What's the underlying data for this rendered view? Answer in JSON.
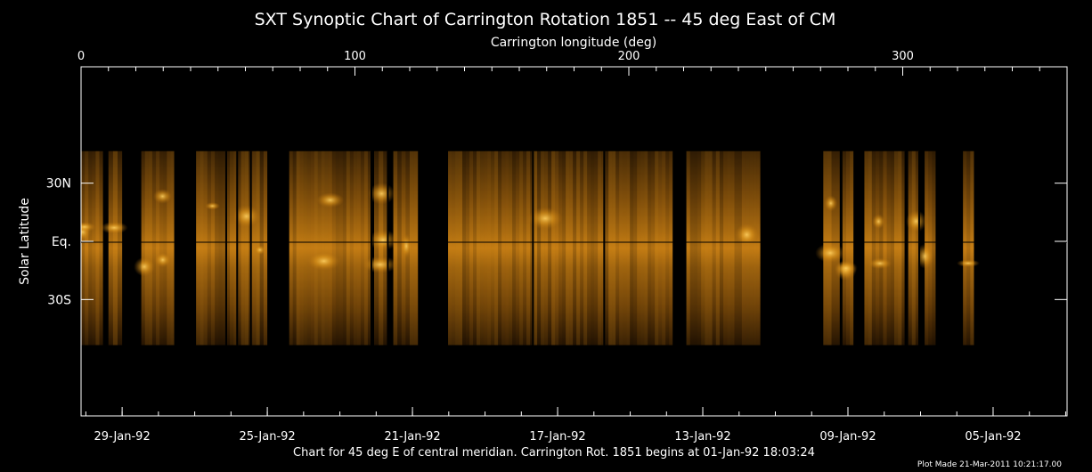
{
  "chart_data": {
    "type": "heatmap",
    "title": "SXT Synoptic Chart of Carrington Rotation 1851 -- 45 deg East of CM",
    "top_axis": {
      "label": "Carrington longitude (deg)",
      "ticks": [
        {
          "value": 0,
          "label": "0"
        },
        {
          "value": 100,
          "label": "100"
        },
        {
          "value": 200,
          "label": "200"
        },
        {
          "value": 300,
          "label": "300"
        }
      ],
      "range": [
        0,
        360
      ]
    },
    "y_axis": {
      "label": "Solar Latitude",
      "ticks": [
        {
          "value": 30,
          "label": "30N"
        },
        {
          "value": 0,
          "label": "Eq."
        },
        {
          "value": -30,
          "label": "30S"
        }
      ],
      "range": [
        -90,
        90
      ]
    },
    "bottom_axis": {
      "ticks": [
        {
          "value": 15,
          "label": "29-Jan-92"
        },
        {
          "value": 68,
          "label": "25-Jan-92"
        },
        {
          "value": 121,
          "label": "21-Jan-92"
        },
        {
          "value": 174,
          "label": "17-Jan-92"
        },
        {
          "value": 227,
          "label": "13-Jan-92"
        },
        {
          "value": 280,
          "label": "09-Jan-92"
        },
        {
          "value": 333,
          "label": "05-Jan-92"
        }
      ]
    },
    "data_strips_longitude": [
      [
        0,
        8
      ],
      [
        10,
        15
      ],
      [
        22,
        34
      ],
      [
        42,
        68
      ],
      [
        76,
        106
      ],
      [
        107,
        112
      ],
      [
        114,
        123
      ],
      [
        134,
        216
      ],
      [
        221,
        248
      ],
      [
        271,
        277
      ],
      [
        278,
        282
      ],
      [
        286,
        301
      ],
      [
        302,
        306
      ],
      [
        308,
        312
      ],
      [
        322,
        326
      ]
    ],
    "data_gaps_lines_longitude": [
      53,
      57,
      62,
      106,
      112,
      165,
      191,
      301,
      306
    ],
    "footer_note": "Chart for 45 deg E of central meridian.  Carrington Rot. 1851 begins at 01-Jan-92 18:03:24",
    "plot_made": "Plot Made 21-Mar-2011 10:21:17.00"
  },
  "colors": {
    "background": "#000000",
    "axes": "#ffffff",
    "colormap": [
      "#050200",
      "#2e1a04",
      "#6b4108",
      "#b06c0e",
      "#e39a1c",
      "#ffd060"
    ]
  }
}
